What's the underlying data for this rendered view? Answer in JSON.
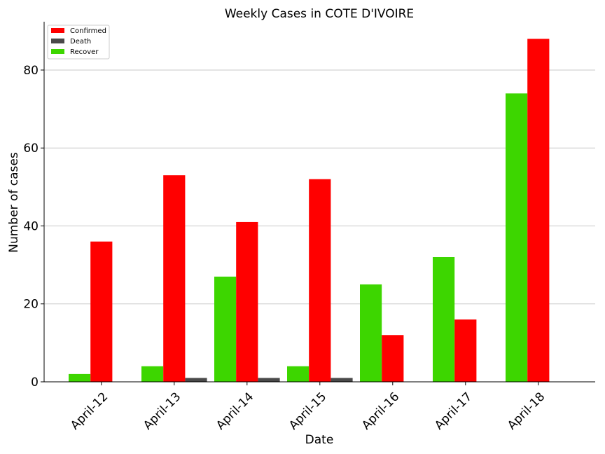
{
  "chart_data": {
    "type": "bar",
    "title": "Weekly Cases in COTE D'IVOIRE",
    "xlabel": "Date",
    "ylabel": "Number of cases",
    "categories": [
      "April-12",
      "April-13",
      "April-14",
      "April-15",
      "April-16",
      "April-17",
      "April-18"
    ],
    "series": [
      {
        "name": "Recover",
        "color": "#3dd600",
        "values": [
          2,
          4,
          27,
          4,
          25,
          32,
          74
        ]
      },
      {
        "name": "Confirmed",
        "color": "#ff0000",
        "values": [
          36,
          53,
          41,
          52,
          12,
          16,
          88
        ]
      },
      {
        "name": "Death",
        "color": "#4a4a4a",
        "values": [
          0,
          1,
          1,
          1,
          0,
          0,
          0
        ]
      }
    ],
    "legend_order": [
      "Confirmed",
      "Death",
      "Recover"
    ],
    "legend_position": "top-left",
    "ylim": [
      0,
      92.4
    ],
    "yticks": [
      0,
      20,
      40,
      60,
      80
    ],
    "grid": "y"
  }
}
